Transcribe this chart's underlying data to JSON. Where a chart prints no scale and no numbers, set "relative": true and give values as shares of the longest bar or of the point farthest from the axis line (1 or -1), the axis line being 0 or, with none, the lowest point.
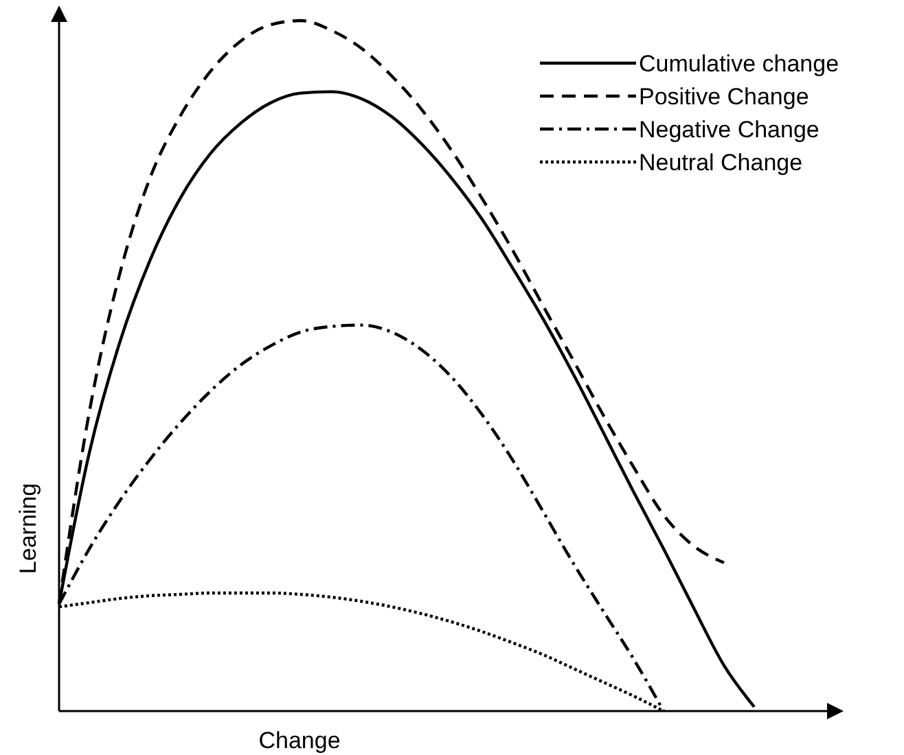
{
  "chart_data": {
    "type": "line",
    "relative": true,
    "xlabel": "Change",
    "ylabel": "Learning",
    "legend": "top right",
    "marker": "none",
    "categories": [
      null,
      null,
      null,
      null,
      null,
      null,
      null,
      null,
      null,
      null,
      null,
      null,
      null,
      null,
      null,
      null,
      null,
      null,
      null,
      null,
      null,
      null,
      null,
      null
    ],
    "series": [
      {
        "name": "Cumulative change",
        "color": "#000000",
        "line_style": "solid",
        "values": [
          0.155,
          0.374,
          0.533,
          0.652,
          0.742,
          0.807,
          0.851,
          0.881,
          0.895,
          0.897,
          0.887,
          0.861,
          0.821,
          0.771,
          0.712,
          0.642,
          0.569,
          0.489,
          0.404,
          0.318,
          0.235,
          0.149,
          0.066,
          0.006
        ]
      },
      {
        "name": "Positive Change",
        "color": "#000000",
        "line_style": "dashed",
        "values": [
          0.155,
          0.433,
          0.632,
          0.771,
          0.861,
          0.926,
          0.97,
          0.994,
          1,
          0.986,
          0.96,
          0.92,
          0.871,
          0.811,
          0.742,
          0.668,
          0.588,
          0.509,
          0.429,
          0.354,
          0.284,
          0.239,
          0.215,
          null
        ]
      },
      {
        "name": "Negative Change",
        "color": "#000000",
        "line_style": "dashdot",
        "values": [
          0.155,
          0.235,
          0.304,
          0.364,
          0.417,
          0.463,
          0.501,
          0.529,
          0.549,
          0.557,
          0.559,
          0.549,
          0.523,
          0.483,
          0.429,
          0.364,
          0.29,
          0.215,
          0.145,
          0.076,
          0,
          null,
          null,
          null
        ]
      },
      {
        "name": "Neutral Change",
        "color": "#000000",
        "line_style": "dotted",
        "values": [
          0.151,
          0.157,
          0.163,
          0.167,
          0.169,
          0.171,
          0.171,
          0.171,
          0.169,
          0.165,
          0.159,
          0.151,
          0.141,
          0.129,
          0.115,
          0.099,
          0.082,
          0.062,
          0.042,
          0.022,
          0,
          null,
          null,
          null
        ]
      }
    ]
  }
}
